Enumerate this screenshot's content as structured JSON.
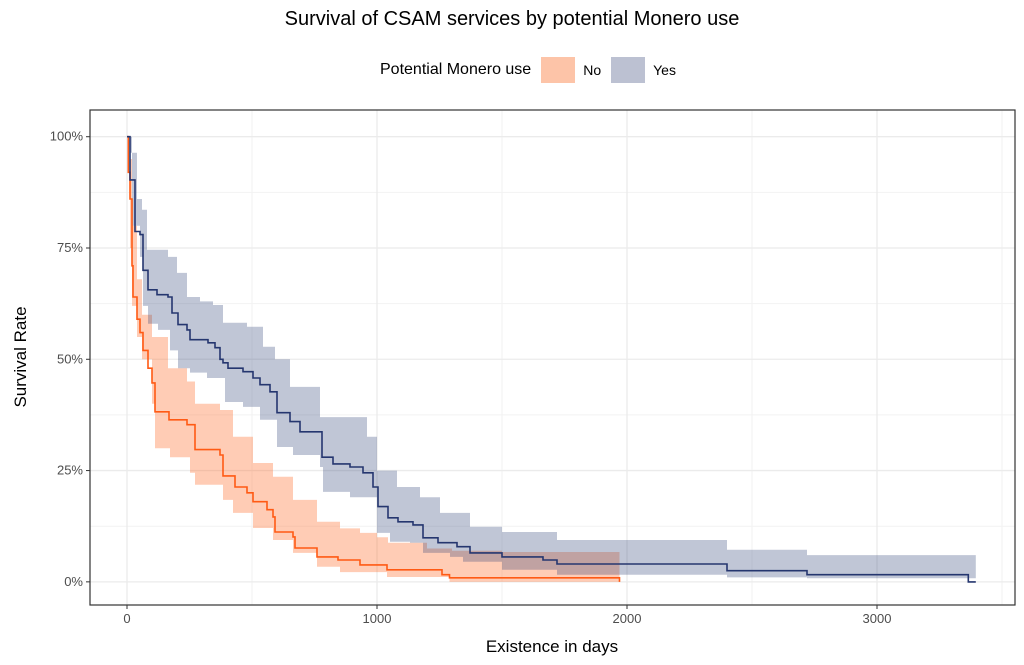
{
  "chart_data": {
    "type": "line",
    "title": "Survival of CSAM services by potential Monero use",
    "xlabel": "Existence in days",
    "ylabel": "Survival Rate",
    "xlim": [
      -148,
      3552
    ],
    "ylim": [
      -5.2,
      106
    ],
    "x_ticks": [
      0,
      1000,
      2000,
      3000
    ],
    "x_tick_labels": [
      "0",
      "1000",
      "2000",
      "3000"
    ],
    "y_ticks": [
      0,
      25,
      50,
      75,
      100
    ],
    "y_tick_labels": [
      "0%",
      "25%",
      "50%",
      "75%",
      "100%"
    ],
    "grid": true,
    "legend": {
      "title": "Potential Monero use",
      "placement": "top"
    },
    "series": [
      {
        "name": "No",
        "line_color": "#FF5A14",
        "fill_color": "#FF7A3C",
        "points": [
          [
            0,
            100
          ],
          [
            5,
            92
          ],
          [
            12,
            86
          ],
          [
            20,
            71
          ],
          [
            24,
            64
          ],
          [
            40,
            59
          ],
          [
            52,
            56
          ],
          [
            64,
            52
          ],
          [
            84,
            48
          ],
          [
            100,
            44.7
          ],
          [
            112,
            38.2
          ],
          [
            168,
            36.4
          ],
          [
            240,
            35.3
          ],
          [
            272,
            29.7
          ],
          [
            372,
            28.5
          ],
          [
            384,
            23.8
          ],
          [
            432,
            21.3
          ],
          [
            480,
            20
          ],
          [
            504,
            18
          ],
          [
            560,
            16.2
          ],
          [
            584,
            14.6
          ],
          [
            592,
            11.2
          ],
          [
            664,
            10.1
          ],
          [
            672,
            7.6
          ],
          [
            760,
            5.6
          ],
          [
            844,
            4.9
          ],
          [
            932,
            3.8
          ],
          [
            1040,
            2.7
          ],
          [
            1260,
            1.6
          ],
          [
            1290,
            0.9
          ],
          [
            1965,
            0.9
          ],
          [
            1970,
            0
          ]
        ],
        "upper": [
          [
            0,
            100
          ],
          [
            12,
            95
          ],
          [
            20,
            80
          ],
          [
            40,
            68
          ],
          [
            60,
            60
          ],
          [
            100,
            55
          ],
          [
            164,
            48
          ],
          [
            240,
            45
          ],
          [
            272,
            40
          ],
          [
            372,
            38.6
          ],
          [
            424,
            32.6
          ],
          [
            504,
            26.7
          ],
          [
            584,
            23.6
          ],
          [
            664,
            18.4
          ],
          [
            760,
            13.5
          ],
          [
            852,
            12
          ],
          [
            932,
            11
          ],
          [
            1000,
            10
          ],
          [
            1044,
            8.8
          ],
          [
            1200,
            7.5
          ],
          [
            1300,
            7
          ],
          [
            1500,
            6.7
          ],
          [
            1970,
            6.5
          ]
        ],
        "lower": [
          [
            0,
            100
          ],
          [
            12,
            75
          ],
          [
            20,
            62
          ],
          [
            40,
            55
          ],
          [
            60,
            50
          ],
          [
            100,
            40
          ],
          [
            112,
            30
          ],
          [
            172,
            28
          ],
          [
            252,
            24.5
          ],
          [
            272,
            21.8
          ],
          [
            384,
            18.4
          ],
          [
            424,
            15.5
          ],
          [
            504,
            12.1
          ],
          [
            584,
            9.4
          ],
          [
            664,
            6.5
          ],
          [
            760,
            3.4
          ],
          [
            852,
            2.2
          ],
          [
            1040,
            1.1
          ],
          [
            1290,
            0
          ],
          [
            1970,
            0
          ]
        ]
      },
      {
        "name": "Yes",
        "line_color": "#25366F",
        "fill_color": "#2F4178",
        "points": [
          [
            0,
            100
          ],
          [
            12,
            90.3
          ],
          [
            32,
            78.7
          ],
          [
            52,
            78
          ],
          [
            64,
            70
          ],
          [
            84,
            65.6
          ],
          [
            120,
            64.5
          ],
          [
            164,
            64
          ],
          [
            180,
            60.4
          ],
          [
            204,
            57.8
          ],
          [
            240,
            56.6
          ],
          [
            252,
            54.4
          ],
          [
            324,
            53.7
          ],
          [
            352,
            52.6
          ],
          [
            372,
            50
          ],
          [
            384,
            49.2
          ],
          [
            404,
            48
          ],
          [
            464,
            47.2
          ],
          [
            504,
            45.8
          ],
          [
            532,
            44.3
          ],
          [
            572,
            42.7
          ],
          [
            600,
            38
          ],
          [
            652,
            36
          ],
          [
            692,
            33.7
          ],
          [
            780,
            28
          ],
          [
            824,
            26.5
          ],
          [
            892,
            25.8
          ],
          [
            944,
            24.5
          ],
          [
            984,
            21.3
          ],
          [
            1004,
            16.9
          ],
          [
            1044,
            14.4
          ],
          [
            1084,
            13.5
          ],
          [
            1144,
            12.8
          ],
          [
            1184,
            9.9
          ],
          [
            1244,
            8.8
          ],
          [
            1320,
            7.9
          ],
          [
            1372,
            6.5
          ],
          [
            1500,
            5.6
          ],
          [
            1664,
            4.9
          ],
          [
            1720,
            4
          ],
          [
            2400,
            2.5
          ],
          [
            2720,
            1.6
          ],
          [
            3365,
            0
          ],
          [
            3395,
            0
          ]
        ],
        "upper": [
          [
            0,
            100
          ],
          [
            12,
            96.4
          ],
          [
            40,
            86
          ],
          [
            60,
            83.6
          ],
          [
            80,
            74.6
          ],
          [
            164,
            73
          ],
          [
            200,
            69.4
          ],
          [
            240,
            64
          ],
          [
            292,
            63
          ],
          [
            344,
            62.2
          ],
          [
            384,
            58.2
          ],
          [
            480,
            57.3
          ],
          [
            544,
            52.8
          ],
          [
            592,
            50
          ],
          [
            652,
            43.8
          ],
          [
            772,
            37
          ],
          [
            960,
            32.6
          ],
          [
            1000,
            25
          ],
          [
            1080,
            21.3
          ],
          [
            1172,
            19
          ],
          [
            1252,
            15.5
          ],
          [
            1372,
            12.4
          ],
          [
            1500,
            11.2
          ],
          [
            1720,
            9.4
          ],
          [
            2400,
            7.2
          ],
          [
            2720,
            6
          ],
          [
            3395,
            6
          ]
        ],
        "lower": [
          [
            0,
            100
          ],
          [
            20,
            80
          ],
          [
            52,
            73
          ],
          [
            64,
            62
          ],
          [
            84,
            58
          ],
          [
            124,
            56.6
          ],
          [
            172,
            52
          ],
          [
            204,
            48
          ],
          [
            252,
            47
          ],
          [
            320,
            45.8
          ],
          [
            392,
            40.4
          ],
          [
            464,
            39.3
          ],
          [
            532,
            36.4
          ],
          [
            600,
            30.3
          ],
          [
            664,
            28.5
          ],
          [
            772,
            25.8
          ],
          [
            784,
            20.2
          ],
          [
            892,
            19
          ],
          [
            1000,
            11
          ],
          [
            1052,
            9
          ],
          [
            1132,
            8.8
          ],
          [
            1184,
            6.5
          ],
          [
            1292,
            5.6
          ],
          [
            1344,
            4.5
          ],
          [
            1500,
            2.7
          ],
          [
            1720,
            1.6
          ],
          [
            2400,
            1
          ],
          [
            2720,
            0.8
          ],
          [
            3395,
            0.8
          ]
        ]
      }
    ]
  }
}
